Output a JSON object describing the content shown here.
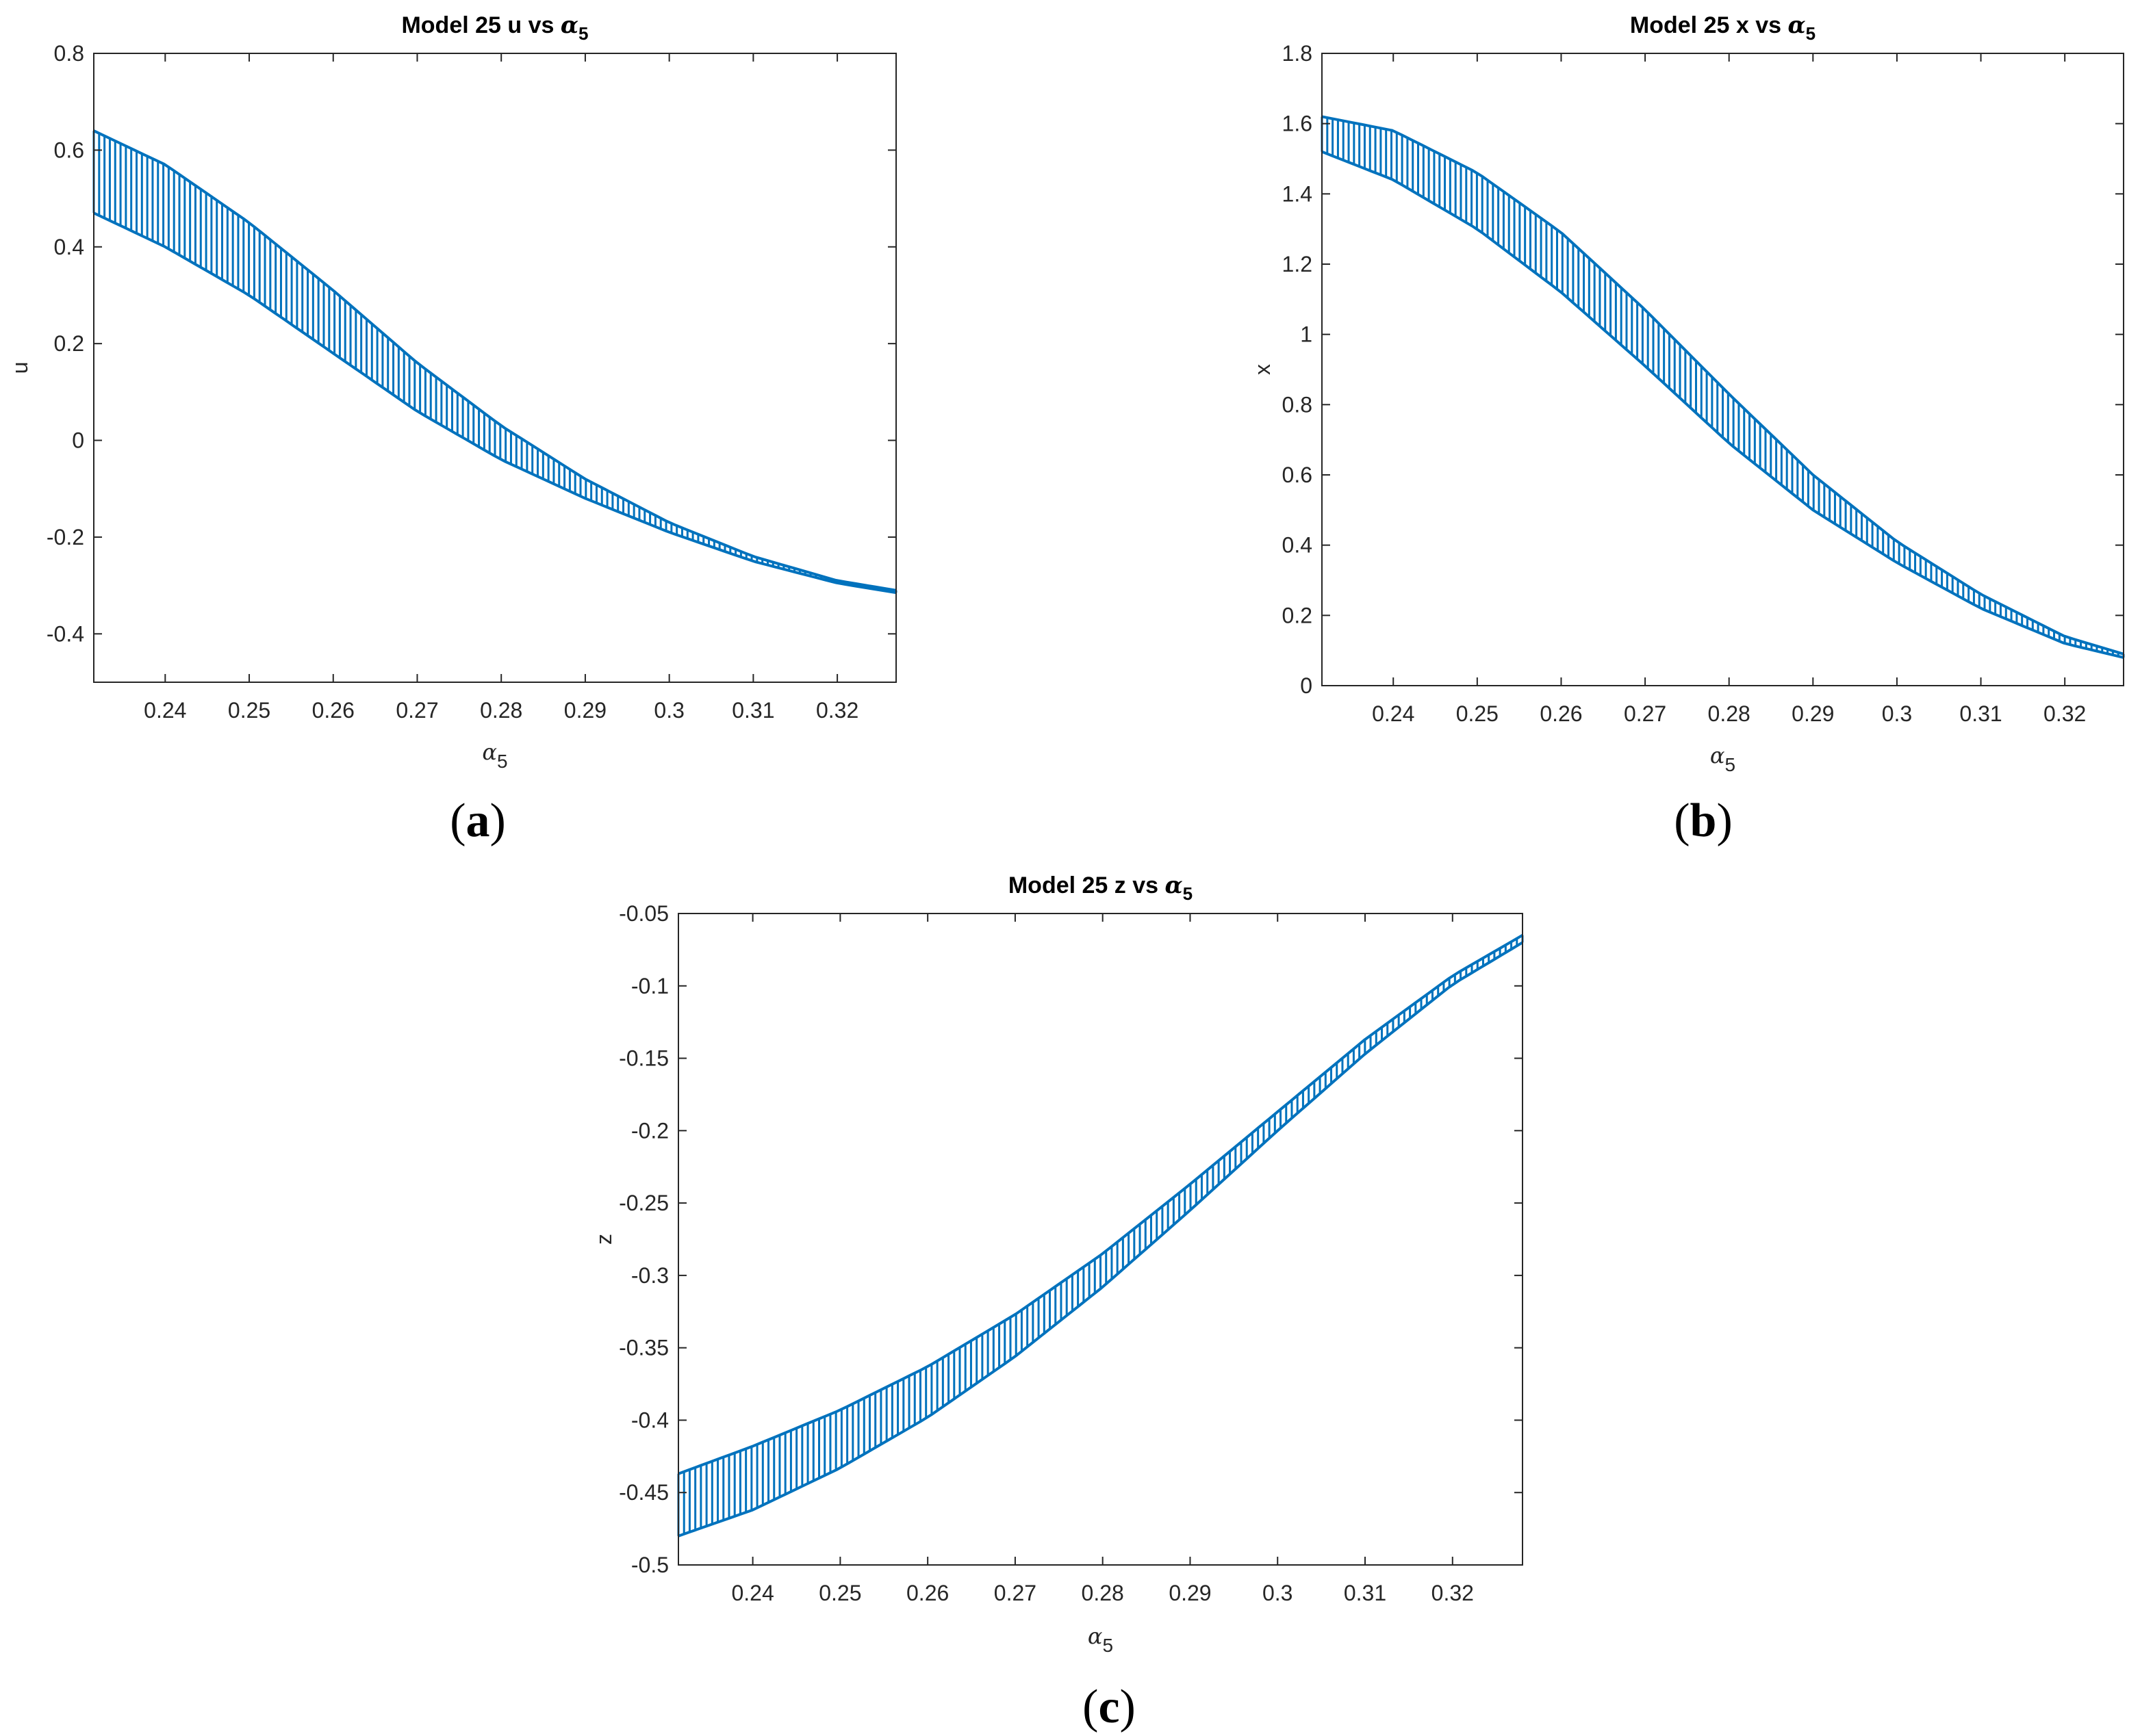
{
  "chart_data": [
    {
      "type": "line",
      "panel_label": "(a)",
      "panel_letter": "a",
      "title_prefix": "Model 25 u vs ",
      "title_greek": "α",
      "title_sub": "5",
      "xlabel_greek": "α",
      "xlabel_sub": "5",
      "ylabel": "u",
      "xlim": [
        0.2315,
        0.327
      ],
      "ylim": [
        -0.5,
        0.8
      ],
      "xticks": [
        0.24,
        0.25,
        0.26,
        0.27,
        0.28,
        0.29,
        0.3,
        0.31,
        0.32
      ],
      "xtick_labels": [
        "0.24",
        "0.25",
        "0.26",
        "0.27",
        "0.28",
        "0.29",
        "0.3",
        "0.31",
        "0.32"
      ],
      "yticks": [
        -0.4,
        -0.2,
        0,
        0.2,
        0.4,
        0.6,
        0.8
      ],
      "ytick_labels": [
        "-0.4",
        "-0.2",
        "0",
        "0.2",
        "0.4",
        "0.6",
        "0.8"
      ],
      "series_color": "#0072BD",
      "series": [
        {
          "name": "upper",
          "x": [
            0.2315,
            0.24,
            0.25,
            0.26,
            0.27,
            0.28,
            0.29,
            0.3,
            0.31,
            0.32,
            0.327
          ],
          "values": [
            0.64,
            0.57,
            0.45,
            0.31,
            0.16,
            0.03,
            -0.08,
            -0.17,
            -0.24,
            -0.29,
            -0.31
          ]
        },
        {
          "name": "lower",
          "x": [
            0.2315,
            0.24,
            0.25,
            0.26,
            0.27,
            0.28,
            0.29,
            0.3,
            0.31,
            0.32,
            0.327
          ],
          "values": [
            0.47,
            0.4,
            0.3,
            0.18,
            0.06,
            -0.04,
            -0.12,
            -0.19,
            -0.25,
            -0.295,
            -0.315
          ]
        }
      ]
    },
    {
      "type": "line",
      "panel_label": "(b)",
      "panel_letter": "b",
      "title_prefix": "Model 25 x vs ",
      "title_greek": "α",
      "title_sub": "5",
      "xlabel_greek": "α",
      "xlabel_sub": "5",
      "ylabel": "x",
      "xlim": [
        0.2315,
        0.327
      ],
      "ylim": [
        0,
        1.8
      ],
      "xticks": [
        0.24,
        0.25,
        0.26,
        0.27,
        0.28,
        0.29,
        0.3,
        0.31,
        0.32
      ],
      "xtick_labels": [
        "0.24",
        "0.25",
        "0.26",
        "0.27",
        "0.28",
        "0.29",
        "0.3",
        "0.31",
        "0.32"
      ],
      "yticks": [
        0,
        0.2,
        0.4,
        0.6,
        0.8,
        1,
        1.2,
        1.4,
        1.6,
        1.8
      ],
      "ytick_labels": [
        "0",
        "0.2",
        "0.4",
        "0.6",
        "0.8",
        "1",
        "1.2",
        "1.4",
        "1.6",
        "1.8"
      ],
      "series_color": "#0072BD",
      "series": [
        {
          "name": "upper",
          "x": [
            0.2315,
            0.24,
            0.25,
            0.26,
            0.27,
            0.28,
            0.29,
            0.3,
            0.31,
            0.32,
            0.327
          ],
          "values": [
            1.62,
            1.58,
            1.46,
            1.29,
            1.07,
            0.83,
            0.6,
            0.41,
            0.26,
            0.14,
            0.09
          ]
        },
        {
          "name": "lower",
          "x": [
            0.2315,
            0.24,
            0.25,
            0.26,
            0.27,
            0.28,
            0.29,
            0.3,
            0.31,
            0.32,
            0.327
          ],
          "values": [
            1.52,
            1.44,
            1.3,
            1.12,
            0.91,
            0.69,
            0.5,
            0.35,
            0.22,
            0.12,
            0.08
          ]
        }
      ]
    },
    {
      "type": "line",
      "panel_label": "(c)",
      "panel_letter": "c",
      "title_prefix": "Model 25 z vs ",
      "title_greek": "α",
      "title_sub": "5",
      "xlabel_greek": "α",
      "xlabel_sub": "5",
      "ylabel": "z",
      "xlim": [
        0.2315,
        0.328
      ],
      "ylim": [
        -0.5,
        -0.05
      ],
      "xticks": [
        0.24,
        0.25,
        0.26,
        0.27,
        0.28,
        0.29,
        0.3,
        0.31,
        0.32
      ],
      "xtick_labels": [
        "0.24",
        "0.25",
        "0.26",
        "0.27",
        "0.28",
        "0.29",
        "0.3",
        "0.31",
        "0.32"
      ],
      "yticks": [
        -0.5,
        -0.45,
        -0.4,
        -0.35,
        -0.3,
        -0.25,
        -0.2,
        -0.15,
        -0.1,
        -0.05
      ],
      "ytick_labels": [
        "-0.5",
        "-0.45",
        "-0.4",
        "-0.35",
        "-0.3",
        "-0.25",
        "-0.2",
        "-0.15",
        "-0.1",
        "-0.05"
      ],
      "series_color": "#0072BD",
      "series": [
        {
          "name": "upper",
          "x": [
            0.2315,
            0.24,
            0.25,
            0.26,
            0.27,
            0.28,
            0.29,
            0.3,
            0.31,
            0.32,
            0.328
          ],
          "values": [
            -0.437,
            -0.418,
            -0.393,
            -0.363,
            -0.327,
            -0.285,
            -0.237,
            -0.187,
            -0.137,
            -0.093,
            -0.065
          ]
        },
        {
          "name": "lower",
          "x": [
            0.2315,
            0.24,
            0.25,
            0.26,
            0.27,
            0.28,
            0.29,
            0.3,
            0.31,
            0.32,
            0.328
          ],
          "values": [
            -0.48,
            -0.462,
            -0.433,
            -0.398,
            -0.356,
            -0.308,
            -0.255,
            -0.2,
            -0.147,
            -0.099,
            -0.07
          ]
        }
      ]
    }
  ]
}
